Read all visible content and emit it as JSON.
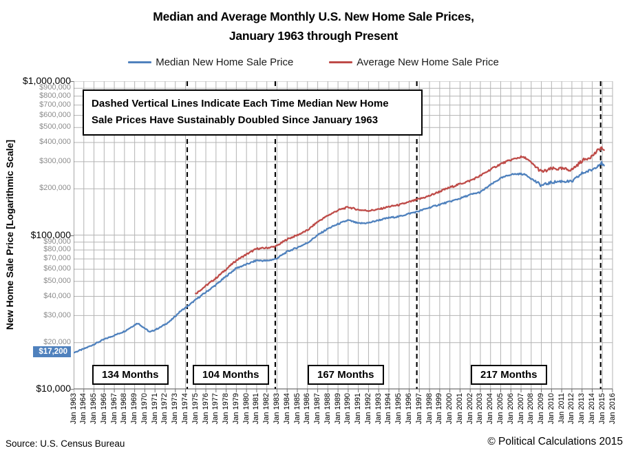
{
  "header": {
    "title_line1": "Median and Average Monthly U.S. New Home Sale Prices,",
    "title_line2": "January 1963 through Present"
  },
  "legend": {
    "items": [
      {
        "label": "Median New Home Sale Price",
        "color": "#4F81BD"
      },
      {
        "label": "Average New Home Sale Price",
        "color": "#BE4B48"
      }
    ]
  },
  "annotation_box": {
    "line1": "Dashed Vertical Lines Indicate Each Time Median New Home",
    "line2": "Sale Prices Have Sustainably Doubled Since January 1963"
  },
  "footer": {
    "source": "Source:  U.S. Census Bureau",
    "copyright": "© Political Calculations 2015"
  },
  "y_axis": {
    "title": "New Home Sale Price [Logarithmic Scale]",
    "highlight": {
      "text": "$17,200",
      "value": 17200,
      "bg": "#4F81BD"
    },
    "ticks": [
      {
        "label": "$1,000,000",
        "value": 1000000,
        "major": true
      },
      {
        "label": "$900,000",
        "value": 900000,
        "major": false
      },
      {
        "label": "$800,000",
        "value": 800000,
        "major": false
      },
      {
        "label": "$700,000",
        "value": 700000,
        "major": false
      },
      {
        "label": "$600,000",
        "value": 600000,
        "major": false
      },
      {
        "label": "$500,000",
        "value": 500000,
        "major": false
      },
      {
        "label": "$400,000",
        "value": 400000,
        "major": false
      },
      {
        "label": "$300,000",
        "value": 300000,
        "major": false
      },
      {
        "label": "$200,000",
        "value": 200000,
        "major": false
      },
      {
        "label": "$100,000",
        "value": 100000,
        "major": true
      },
      {
        "label": "$90,000",
        "value": 90000,
        "major": false
      },
      {
        "label": "$80,000",
        "value": 80000,
        "major": false
      },
      {
        "label": "$70,000",
        "value": 70000,
        "major": false
      },
      {
        "label": "$60,000",
        "value": 60000,
        "major": false
      },
      {
        "label": "$50,000",
        "value": 50000,
        "major": false
      },
      {
        "label": "$40,000",
        "value": 40000,
        "major": false
      },
      {
        "label": "$30,000",
        "value": 30000,
        "major": false
      },
      {
        "label": "$20,000",
        "value": 20000,
        "major": false
      },
      {
        "label": "$10,000",
        "value": 10000,
        "major": true
      }
    ]
  },
  "x_axis": {
    "tick_labels": [
      "Jan 1963",
      "Jan 1964",
      "Jan 1965",
      "Jan 1966",
      "Jan 1967",
      "Jan 1968",
      "Jan 1969",
      "Jan 1970",
      "Jan 1971",
      "Jan 1972",
      "Jan 1973",
      "Jan 1974",
      "Jan 1975",
      "Jan 1976",
      "Jan 1977",
      "Jan 1978",
      "Jan 1979",
      "Jan 1980",
      "Jan 1981",
      "Jan 1982",
      "Jan 1983",
      "Jan 1984",
      "Jan 1985",
      "Jan 1986",
      "Jan 1987",
      "Jan 1988",
      "Jan 1989",
      "Jan 1990",
      "Jan 1991",
      "Jan 1992",
      "Jan 1993",
      "Jan 1994",
      "Jan 1995",
      "Jan 1996",
      "Jan 1997",
      "Jan 1998",
      "Jan 1999",
      "Jan 2000",
      "Jan 2001",
      "Jan 2002",
      "Jan 2003",
      "Jan 2004",
      "Jan 2005",
      "Jan 2006",
      "Jan 2007",
      "Jan 2008",
      "Jan 2009",
      "Jan 2010",
      "Jan 2011",
      "Jan 2012",
      "Jan 2013",
      "Jan 2014",
      "Jan 2015",
      "Jan 2016"
    ]
  },
  "chart_data": {
    "type": "line",
    "title": "Median and Average Monthly U.S. New Home Sale Prices, January 1963 through Present",
    "ylabel": "New Home Sale Price [Logarithmic Scale]",
    "y_scale": "log",
    "ylim": [
      10000,
      1000000
    ],
    "x_unit": "decimal_year",
    "xlim": [
      1963,
      2016
    ],
    "grid": true,
    "legend_position": "top",
    "series": [
      {
        "name": "Median New Home Sale Price",
        "color": "#4F81BD",
        "frequency": "monthly",
        "first_point_label": "$17,200",
        "anchor_points": [
          [
            1963.0,
            17200
          ],
          [
            1964.0,
            18200
          ],
          [
            1965.0,
            19500
          ],
          [
            1966.0,
            21000
          ],
          [
            1967.0,
            22300
          ],
          [
            1968.0,
            23700
          ],
          [
            1969.3,
            26800
          ],
          [
            1970.5,
            23400
          ],
          [
            1971.5,
            25100
          ],
          [
            1972.5,
            27600
          ],
          [
            1973.5,
            32000
          ],
          [
            1974.2,
            34400
          ],
          [
            1975.0,
            38000
          ],
          [
            1976.0,
            42500
          ],
          [
            1977.0,
            47500
          ],
          [
            1978.0,
            54000
          ],
          [
            1979.0,
            61000
          ],
          [
            1980.0,
            64500
          ],
          [
            1981.0,
            68500
          ],
          [
            1982.0,
            68000
          ],
          [
            1982.9,
            70000
          ],
          [
            1984.0,
            78000
          ],
          [
            1985.0,
            83000
          ],
          [
            1986.0,
            89000
          ],
          [
            1987.0,
            100000
          ],
          [
            1988.0,
            110000
          ],
          [
            1989.0,
            118000
          ],
          [
            1990.0,
            125000
          ],
          [
            1991.0,
            119000
          ],
          [
            1992.0,
            120000
          ],
          [
            1993.0,
            125000
          ],
          [
            1994.0,
            129500
          ],
          [
            1995.0,
            132000
          ],
          [
            1996.0,
            138000
          ],
          [
            1996.8,
            142000
          ],
          [
            1998.0,
            151000
          ],
          [
            1999.0,
            158000
          ],
          [
            2000.0,
            165000
          ],
          [
            2001.0,
            173000
          ],
          [
            2002.0,
            183000
          ],
          [
            2003.0,
            190000
          ],
          [
            2004.0,
            212000
          ],
          [
            2005.0,
            234000
          ],
          [
            2006.0,
            248000
          ],
          [
            2007.0,
            250000
          ],
          [
            2007.5,
            246000
          ],
          [
            2008.0,
            233000
          ],
          [
            2009.0,
            210000
          ],
          [
            2009.5,
            215000
          ],
          [
            2010.0,
            220000
          ],
          [
            2011.0,
            224000
          ],
          [
            2012.0,
            222000
          ],
          [
            2013.0,
            252000
          ],
          [
            2014.0,
            266000
          ],
          [
            2014.9,
            295000
          ],
          [
            2015.2,
            277000
          ]
        ]
      },
      {
        "name": "Average New Home Sale Price",
        "color": "#BE4B48",
        "frequency": "monthly",
        "anchor_points": [
          [
            1975.0,
            41600
          ],
          [
            1976.0,
            46800
          ],
          [
            1977.0,
            52500
          ],
          [
            1978.0,
            60000
          ],
          [
            1979.0,
            68500
          ],
          [
            1980.0,
            75000
          ],
          [
            1981.0,
            81500
          ],
          [
            1982.0,
            82500
          ],
          [
            1982.9,
            84500
          ],
          [
            1984.0,
            94000
          ],
          [
            1985.0,
            100000
          ],
          [
            1986.0,
            107500
          ],
          [
            1987.0,
            122000
          ],
          [
            1988.0,
            134000
          ],
          [
            1989.0,
            145000
          ],
          [
            1990.0,
            152000
          ],
          [
            1991.0,
            146000
          ],
          [
            1992.0,
            144000
          ],
          [
            1993.0,
            147000
          ],
          [
            1994.0,
            153000
          ],
          [
            1995.0,
            157000
          ],
          [
            1996.0,
            164000
          ],
          [
            1996.8,
            170000
          ],
          [
            1998.0,
            180000
          ],
          [
            1999.0,
            192000
          ],
          [
            2000.0,
            204000
          ],
          [
            2001.0,
            215000
          ],
          [
            2002.0,
            226000
          ],
          [
            2003.0,
            243000
          ],
          [
            2004.0,
            267000
          ],
          [
            2005.0,
            290000
          ],
          [
            2006.0,
            308000
          ],
          [
            2007.0,
            322000
          ],
          [
            2007.5,
            316000
          ],
          [
            2008.0,
            295000
          ],
          [
            2009.0,
            258000
          ],
          [
            2009.5,
            262000
          ],
          [
            2010.0,
            270000
          ],
          [
            2011.0,
            269000
          ],
          [
            2012.0,
            266000
          ],
          [
            2013.0,
            304000
          ],
          [
            2014.0,
            327000
          ],
          [
            2014.9,
            372000
          ],
          [
            2015.2,
            347000
          ]
        ]
      }
    ],
    "doubling_lines": [
      {
        "x": 1974.17,
        "date": "Mar 1974",
        "segment_label": "134 Months"
      },
      {
        "x": 1982.83,
        "date": "Nov 1982",
        "segment_label": "104 Months"
      },
      {
        "x": 1996.75,
        "date": "Oct 1996",
        "segment_label": "167 Months"
      },
      {
        "x": 2014.83,
        "date": "Nov 2014",
        "segment_label": "217 Months"
      }
    ]
  }
}
